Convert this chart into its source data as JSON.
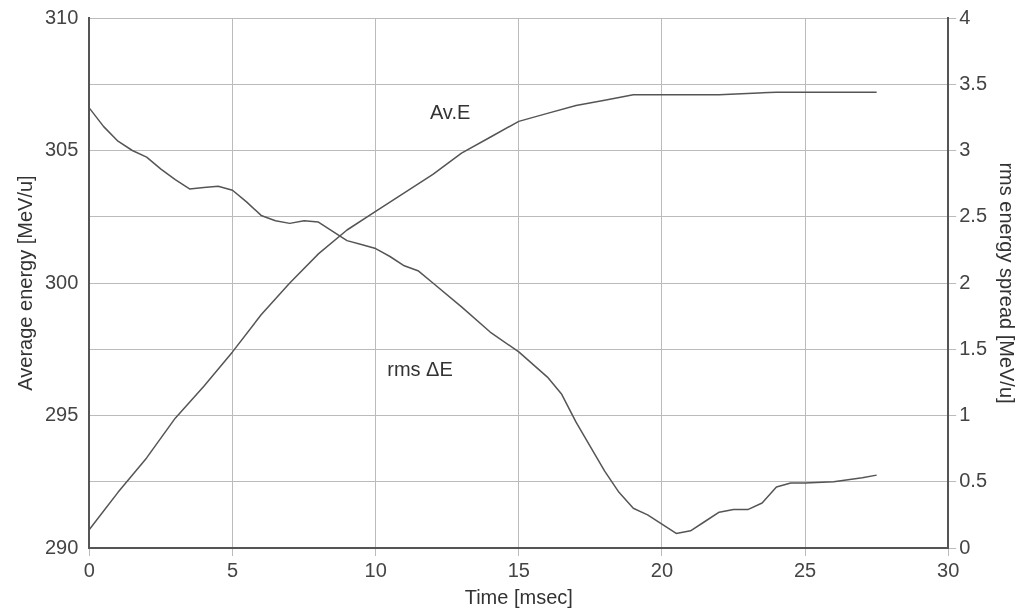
{
  "chart_data": {
    "type": "line",
    "xlabel": "Time [msec]",
    "ylabel": "Average energy [MeV/u]",
    "y2label": "rms energy spread [MeV/u]",
    "xlim": [
      0,
      30
    ],
    "xticks": [
      0,
      5,
      10,
      15,
      20,
      25,
      30
    ],
    "ylim": [
      290,
      310
    ],
    "yticks": [
      290,
      295,
      300,
      305,
      310
    ],
    "y2lim": [
      0,
      4
    ],
    "y2ticks": [
      0,
      0.5,
      1,
      1.5,
      2,
      2.5,
      3,
      3.5,
      4
    ],
    "grid": true,
    "legend": false,
    "marker": "none",
    "line_style": "solid",
    "series": [
      {
        "color": "#555555",
        "axis": "y",
        "x": [
          0,
          1,
          2,
          3,
          4,
          5,
          6,
          7,
          8,
          9,
          10,
          11,
          12,
          13,
          14,
          15,
          16,
          17,
          18,
          19,
          20,
          22,
          24,
          25,
          27.5
        ],
        "values": [
          290.7,
          292.1,
          293.4,
          294.9,
          296.1,
          297.4,
          298.8,
          300.0,
          301.1,
          302.0,
          302.7,
          303.4,
          304.1,
          304.9,
          305.5,
          306.1,
          306.4,
          306.7,
          306.9,
          307.1,
          307.1,
          307.1,
          307.2,
          307.2,
          307.2
        ]
      },
      {
        "color": "#555555",
        "axis": "y2",
        "x": [
          0,
          0.5,
          1,
          1.5,
          2,
          2.5,
          3,
          3.5,
          4,
          4.5,
          5,
          5.5,
          6,
          6.5,
          7,
          7.5,
          8,
          8.5,
          9,
          9.5,
          10,
          10.5,
          11,
          11.5,
          12,
          13,
          14,
          15,
          16,
          16.5,
          17,
          18,
          18.5,
          19,
          19.5,
          20,
          20.5,
          21,
          21.5,
          22,
          22.5,
          23,
          23.5,
          24,
          24.5,
          25,
          26,
          27,
          27.5
        ],
        "values": [
          3.32,
          3.18,
          3.07,
          3.0,
          2.95,
          2.86,
          2.78,
          2.71,
          2.72,
          2.73,
          2.7,
          2.61,
          2.51,
          2.47,
          2.45,
          2.47,
          2.46,
          2.39,
          2.32,
          2.29,
          2.26,
          2.2,
          2.13,
          2.09,
          2.0,
          1.82,
          1.63,
          1.48,
          1.29,
          1.16,
          0.95,
          0.58,
          0.42,
          0.3,
          0.25,
          0.18,
          0.11,
          0.13,
          0.2,
          0.27,
          0.29,
          0.29,
          0.34,
          0.46,
          0.49,
          0.49,
          0.5,
          0.53,
          0.55
        ]
      }
    ],
    "annotations": [
      "Av.E",
      "rms ΔE"
    ]
  }
}
